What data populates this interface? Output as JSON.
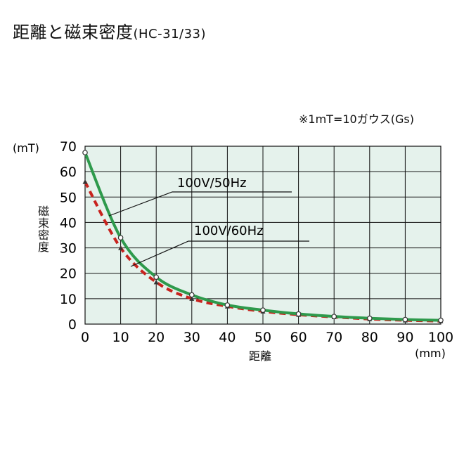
{
  "title": {
    "main": "距離と磁束密度",
    "sub": "(HC-31/33)"
  },
  "note": "※1mT=10ガウス(Gs)",
  "colors": {
    "plot_bg": "#e5f2ec",
    "grid": "#111111",
    "series_50": "#2e9a4c",
    "series_60": "#c8231e"
  },
  "chart_data": {
    "type": "line",
    "title": "",
    "xlabel": "距離",
    "xunit": "(mm)",
    "ylabel": "磁束密度",
    "yunit": "(mT)",
    "xlim": [
      0,
      100
    ],
    "ylim": [
      0,
      70
    ],
    "xticks": [
      0,
      10,
      20,
      30,
      40,
      50,
      60,
      70,
      80,
      90,
      100
    ],
    "yticks": [
      0,
      10,
      20,
      30,
      40,
      50,
      60,
      70
    ],
    "grid": true,
    "series": [
      {
        "name": "100V/50Hz",
        "style": "solid",
        "x": [
          0,
          10,
          20,
          30,
          40,
          50,
          60,
          70,
          80,
          90,
          100
        ],
        "y": [
          67.5,
          34,
          18.5,
          11.5,
          7.5,
          5.5,
          4.0,
          3.0,
          2.3,
          1.8,
          1.5
        ]
      },
      {
        "name": "100V/60Hz",
        "style": "dashed",
        "x": [
          0,
          10,
          20,
          30,
          40,
          50,
          60,
          70,
          80,
          90,
          100
        ],
        "y": [
          56,
          30,
          16.5,
          10,
          7.0,
          5.0,
          3.7,
          2.8,
          2.0,
          1.5,
          1.2
        ]
      }
    ]
  }
}
